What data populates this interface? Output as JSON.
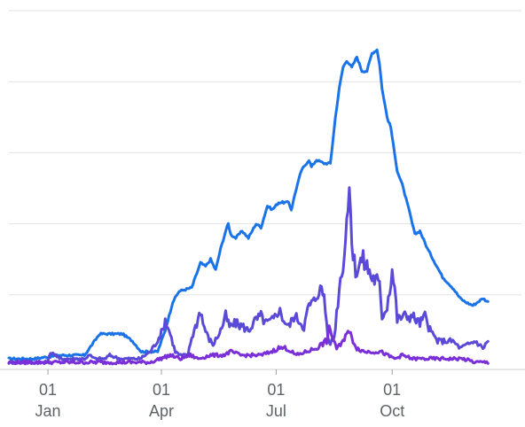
{
  "chart_data": {
    "type": "line",
    "title": "",
    "xlabel": "",
    "ylabel": "",
    "x_range_days": [
      0,
      396
    ],
    "ylim": [
      0,
      100
    ],
    "grid": true,
    "y_gridlines": [
      20,
      40,
      60,
      80,
      100
    ],
    "legend": "none",
    "x_ticks": [
      {
        "day": 31,
        "day_label": "01",
        "month_label": "Jan"
      },
      {
        "day": 121,
        "day_label": "01",
        "month_label": "Apr"
      },
      {
        "day": 212,
        "day_label": "01",
        "month_label": "Jul"
      },
      {
        "day": 304,
        "day_label": "01",
        "month_label": "Oct"
      }
    ],
    "series": [
      {
        "color": "#1a73e8",
        "points": [
          [
            0,
            2
          ],
          [
            20,
            2
          ],
          [
            40,
            3
          ],
          [
            60,
            3
          ],
          [
            66,
            6
          ],
          [
            72,
            9
          ],
          [
            90,
            9
          ],
          [
            98,
            7
          ],
          [
            105,
            4
          ],
          [
            118,
            4
          ],
          [
            120,
            6
          ],
          [
            124,
            10
          ],
          [
            130,
            18
          ],
          [
            135,
            21
          ],
          [
            145,
            22
          ],
          [
            152,
            29
          ],
          [
            156,
            28
          ],
          [
            160,
            30
          ],
          [
            164,
            27
          ],
          [
            168,
            33
          ],
          [
            172,
            38
          ],
          [
            174,
            40
          ],
          [
            176,
            37
          ],
          [
            180,
            36
          ],
          [
            185,
            38
          ],
          [
            190,
            36
          ],
          [
            196,
            40
          ],
          [
            200,
            39
          ],
          [
            205,
            45
          ],
          [
            209,
            44
          ],
          [
            214,
            46
          ],
          [
            222,
            46
          ],
          [
            224,
            44
          ],
          [
            228,
            50
          ],
          [
            232,
            55
          ],
          [
            238,
            58
          ],
          [
            240,
            56
          ],
          [
            244,
            58
          ],
          [
            250,
            57
          ],
          [
            255,
            57
          ],
          [
            259,
            70
          ],
          [
            262,
            78
          ],
          [
            265,
            84
          ],
          [
            268,
            86
          ],
          [
            272,
            84
          ],
          [
            276,
            87
          ],
          [
            280,
            83
          ],
          [
            284,
            83
          ],
          [
            288,
            88
          ],
          [
            292,
            89
          ],
          [
            294,
            85
          ],
          [
            296,
            78
          ],
          [
            300,
            70
          ],
          [
            303,
            67
          ],
          [
            305,
            62
          ],
          [
            308,
            55
          ],
          [
            312,
            51
          ],
          [
            318,
            43
          ],
          [
            322,
            37
          ],
          [
            326,
            38
          ],
          [
            332,
            33
          ],
          [
            338,
            29
          ],
          [
            344,
            25
          ],
          [
            352,
            22
          ],
          [
            358,
            19
          ],
          [
            362,
            18
          ],
          [
            368,
            17
          ],
          [
            376,
            19
          ],
          [
            380,
            18
          ]
        ]
      },
      {
        "color": "#5b4ad8",
        "points": [
          [
            0,
            1
          ],
          [
            30,
            1
          ],
          [
            34,
            4
          ],
          [
            40,
            2
          ],
          [
            50,
            2
          ],
          [
            60,
            2
          ],
          [
            64,
            3
          ],
          [
            68,
            2
          ],
          [
            72,
            2
          ],
          [
            76,
            2
          ],
          [
            80,
            3
          ],
          [
            88,
            2
          ],
          [
            96,
            2
          ],
          [
            104,
            2
          ],
          [
            112,
            4
          ],
          [
            116,
            6
          ],
          [
            122,
            10
          ],
          [
            124,
            13
          ],
          [
            128,
            9
          ],
          [
            132,
            4
          ],
          [
            136,
            3
          ],
          [
            142,
            3
          ],
          [
            145,
            8
          ],
          [
            149,
            12
          ],
          [
            152,
            16
          ],
          [
            154,
            12
          ],
          [
            158,
            8
          ],
          [
            162,
            6
          ],
          [
            168,
            10
          ],
          [
            172,
            14
          ],
          [
            175,
            11
          ],
          [
            180,
            12
          ],
          [
            186,
            11
          ],
          [
            190,
            10
          ],
          [
            196,
            13
          ],
          [
            200,
            14
          ],
          [
            204,
            12
          ],
          [
            210,
            13
          ],
          [
            214,
            16
          ],
          [
            218,
            13
          ],
          [
            222,
            11
          ],
          [
            226,
            14
          ],
          [
            230,
            13
          ],
          [
            234,
            11
          ],
          [
            238,
            17
          ],
          [
            242,
            18
          ],
          [
            246,
            22
          ],
          [
            250,
            20
          ],
          [
            252,
            12
          ],
          [
            254,
            6
          ],
          [
            258,
            8
          ],
          [
            262,
            22
          ],
          [
            266,
            32
          ],
          [
            269,
            45
          ],
          [
            271,
            45
          ],
          [
            273,
            30
          ],
          [
            276,
            27
          ],
          [
            280,
            30
          ],
          [
            284,
            28
          ],
          [
            288,
            25
          ],
          [
            292,
            24
          ],
          [
            294,
            22
          ],
          [
            296,
            14
          ],
          [
            300,
            17
          ],
          [
            304,
            27
          ],
          [
            306,
            22
          ],
          [
            308,
            13
          ],
          [
            312,
            14
          ],
          [
            320,
            14
          ],
          [
            326,
            12
          ],
          [
            330,
            14
          ],
          [
            334,
            10
          ],
          [
            340,
            7
          ],
          [
            346,
            7
          ],
          [
            352,
            7
          ],
          [
            358,
            5
          ],
          [
            364,
            6
          ],
          [
            370,
            7
          ],
          [
            376,
            5
          ],
          [
            380,
            7
          ]
        ]
      },
      {
        "color": "#7b2fd8",
        "points": [
          [
            0,
            1
          ],
          [
            60,
            1
          ],
          [
            90,
            1
          ],
          [
            112,
            1
          ],
          [
            120,
            2
          ],
          [
            128,
            3
          ],
          [
            136,
            2
          ],
          [
            144,
            3
          ],
          [
            150,
            2
          ],
          [
            160,
            3
          ],
          [
            170,
            3
          ],
          [
            176,
            4
          ],
          [
            184,
            3
          ],
          [
            192,
            3
          ],
          [
            200,
            3
          ],
          [
            208,
            4
          ],
          [
            214,
            5
          ],
          [
            220,
            5
          ],
          [
            228,
            3
          ],
          [
            236,
            4
          ],
          [
            244,
            5
          ],
          [
            248,
            6
          ],
          [
            252,
            7
          ],
          [
            254,
            10
          ],
          [
            256,
            9
          ],
          [
            260,
            5
          ],
          [
            264,
            6
          ],
          [
            268,
            10
          ],
          [
            272,
            8
          ],
          [
            276,
            5
          ],
          [
            282,
            4
          ],
          [
            290,
            4
          ],
          [
            295,
            4
          ],
          [
            300,
            3
          ],
          [
            306,
            2
          ],
          [
            312,
            3
          ],
          [
            320,
            2
          ],
          [
            330,
            2
          ],
          [
            340,
            2
          ],
          [
            350,
            2
          ],
          [
            360,
            2
          ],
          [
            370,
            1
          ],
          [
            380,
            1
          ]
        ]
      }
    ]
  }
}
